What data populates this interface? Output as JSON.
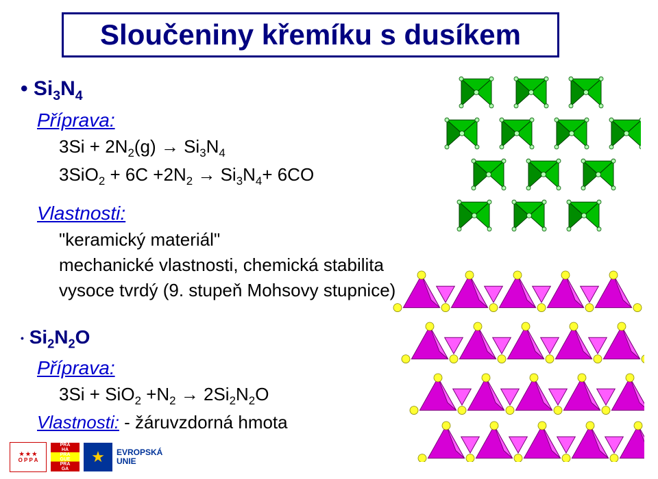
{
  "title": "Sloučeniny křemíku s dusíkem",
  "section1": {
    "formula": "Si<sub>3</sub>N<sub>4</sub>",
    "prep_heading": "Příprava:",
    "prep_line1": "3Si + 2N<sub>2</sub>(g) → Si<sub>3</sub>N<sub>4</sub>",
    "prep_line2": "3SiO<sub>2</sub> + 6C +2N<sub>2</sub> → Si<sub>3</sub>N<sub>4</sub>+ 6CO",
    "prop_heading": "Vlastnosti:",
    "prop_line1": "\"keramický materiál\"",
    "prop_line2": "mechanické vlastnosti, chemická stabilita",
    "prop_line3": "vysoce tvrdý (9. stupeň Mohsovy stupnice)"
  },
  "section2": {
    "formula": "Si<sub>2</sub>N<sub>2</sub>O",
    "prep_heading": "Příprava:",
    "prep_line1": "3Si + SiO<sub>2</sub> +N<sub>2</sub> → 2Si<sub>2</sub>N<sub>2</sub>O",
    "prop_line": "Vlastnosti: - žáruvzdorná hmota"
  },
  "crystal1": {
    "triangle_fill": "#00c000",
    "triangle_dark": "#008c00",
    "atom_fill": "#b0ffb0"
  },
  "crystal2": {
    "triangle_fill": "#d600d6",
    "triangle_light": "#ff5cff",
    "atom_fill": "#ffff33"
  },
  "footer": {
    "oppa": "O P P A",
    "praha": "PRA HA",
    "eu_text": "EVROPSKÁ\nUNIE"
  }
}
